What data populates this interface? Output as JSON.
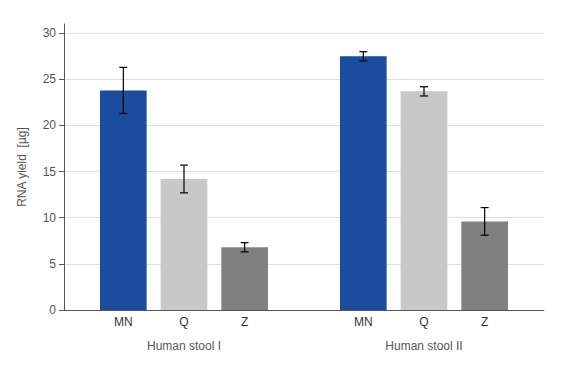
{
  "chart_data": {
    "type": "bar",
    "categories": [
      "Human stool I",
      "Human stool II"
    ],
    "series": [
      {
        "name": "MN",
        "color": "#1a4d9e",
        "values": [
          23.8,
          27.5
        ],
        "errors": [
          2.5,
          0.5
        ]
      },
      {
        "name": "Q",
        "color": "#c8c8c8",
        "values": [
          14.2,
          23.7
        ],
        "errors": [
          1.5,
          0.5
        ]
      },
      {
        "name": "Z",
        "color": "#808080",
        "values": [
          6.8,
          9.6
        ],
        "errors": [
          0.5,
          1.5
        ]
      }
    ],
    "ylabel": "RNA yield  [µg]",
    "ylim": [
      0,
      31
    ],
    "yticks": [
      0,
      5,
      10,
      15,
      20,
      25,
      30
    ],
    "grid": true
  }
}
